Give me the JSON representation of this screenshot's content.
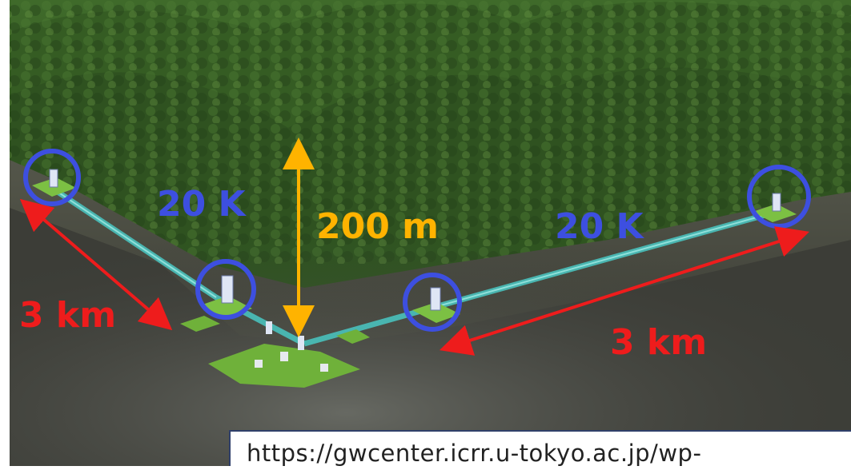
{
  "image": {
    "description_free": true,
    "colors": {
      "forest_dark": "#1f3a14",
      "forest_light": "#5e8a3c",
      "rock": "#4a4a42",
      "tunnel": "#49b5b0",
      "pad": "#7cc043",
      "marker_circle": "#3d4fe0",
      "arrow_red": "#ee1c1c",
      "arrow_gold": "#ffb300"
    }
  },
  "labels": {
    "temp_left": "20 K",
    "temp_right": "20 K",
    "depth": "200 m",
    "arm_left": "3 km",
    "arm_right": "3 km"
  },
  "caption": {
    "url": "https://gwcenter.icrr.u-tokyo.ac.jp/wp-"
  }
}
